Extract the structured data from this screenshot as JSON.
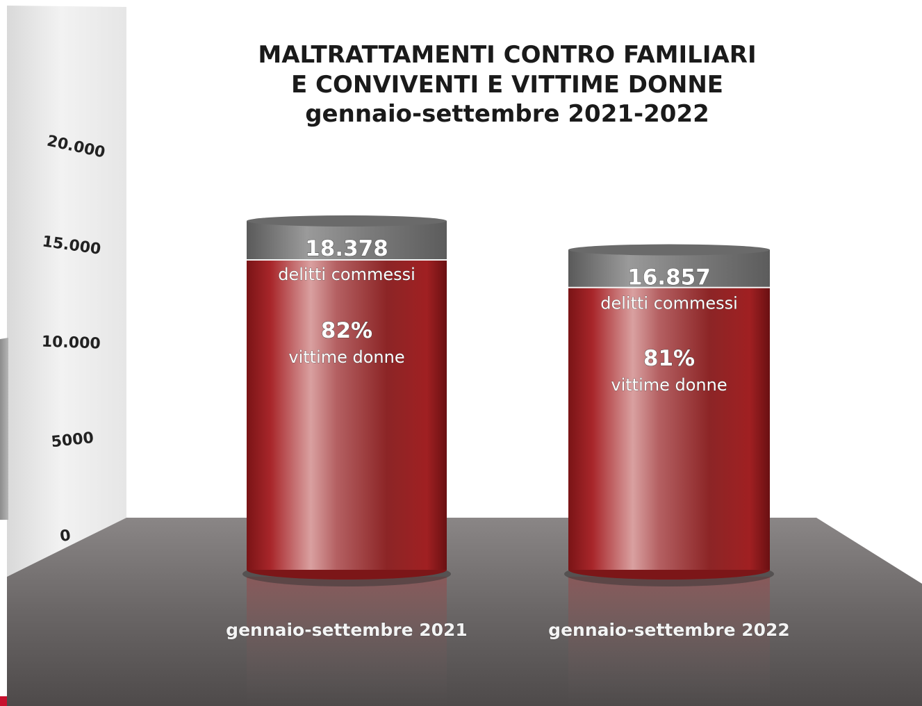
{
  "chart_data": {
    "type": "bar",
    "title": [
      "MALTRATTAMENTI CONTRO FAMILIARI",
      "E CONVIVENTI E VITTIME DONNE",
      "gennaio-settembre 2021-2022"
    ],
    "categories": [
      "gennaio-settembre 2021",
      "gennaio-settembre 2022"
    ],
    "values": [
      18378,
      16857
    ],
    "value_labels": [
      "18.378",
      "16.857"
    ],
    "value_sublabel": "delitti commessi",
    "women_percent": [
      82,
      81
    ],
    "women_labels": [
      "82%",
      "81%"
    ],
    "women_sublabel": "vittime donne",
    "yticks": [
      0,
      5000,
      10000,
      15000,
      20000
    ],
    "ytick_labels": [
      "0",
      "5000",
      "10.000",
      "15.000",
      "20.000"
    ],
    "ylim": [
      0,
      20000
    ],
    "grid": false,
    "legend": "none"
  },
  "colors": {
    "bar_red": "#8e1b1c",
    "bar_grey": "#7a7a7a",
    "floor": "#6e6a6a",
    "wall": "#ebebeb"
  }
}
